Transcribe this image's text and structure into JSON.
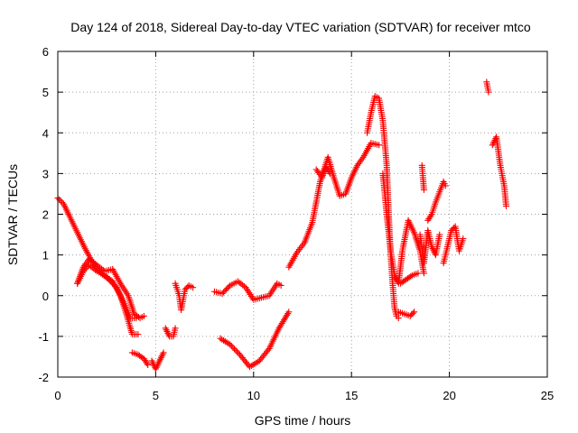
{
  "chart_data": {
    "type": "scatter",
    "title": "Day 124 of 2018, Sidereal Day-to-day VTEC variation (SDTVAR) for receiver mtco",
    "xlabel": "GPS time / hours",
    "ylabel": "SDTVAR / TECUs",
    "xlim": [
      0,
      25
    ],
    "ylim": [
      -2,
      6
    ],
    "xticks": [
      "0",
      "5",
      "10",
      "15",
      "20",
      "25"
    ],
    "yticks": [
      "-2",
      "-1",
      "0",
      "1",
      "2",
      "3",
      "4",
      "5",
      "6"
    ],
    "grid": true,
    "marker": "+",
    "color": "#ff0000",
    "series": [
      {
        "x": [
          0,
          0.3,
          0.6,
          1.0,
          1.4,
          1.8,
          2.2,
          2.6,
          3.0,
          3.4,
          3.7,
          4.0
        ],
        "y": [
          2.4,
          2.25,
          1.95,
          1.55,
          1.15,
          0.8,
          0.55,
          0.4,
          0.2,
          -0.2,
          -0.55,
          -0.55
        ]
      },
      {
        "x": [
          1.0,
          1.3,
          1.6,
          2.0,
          2.4,
          2.8,
          3.2,
          3.5,
          3.8,
          4.1
        ],
        "y": [
          0.3,
          0.6,
          0.75,
          0.6,
          0.5,
          0.35,
          0.0,
          -0.45,
          -0.95,
          -0.95
        ]
      },
      {
        "x": [
          1.0,
          1.3,
          1.6,
          2.0,
          2.4,
          2.8,
          3.2,
          3.6,
          3.9,
          4.2,
          4.4
        ],
        "y": [
          0.3,
          0.7,
          0.9,
          0.75,
          0.6,
          0.65,
          0.3,
          0.0,
          -0.45,
          -0.55,
          -0.5
        ]
      },
      {
        "x": [
          3.8,
          4.1,
          4.4,
          4.6
        ],
        "y": [
          -1.4,
          -1.45,
          -1.55,
          -1.7
        ]
      },
      {
        "x": [
          4.8,
          5.0,
          5.2,
          5.4
        ],
        "y": [
          -1.6,
          -1.8,
          -1.6,
          -1.4
        ]
      },
      {
        "x": [
          5.5,
          5.7,
          5.9,
          6.0
        ],
        "y": [
          -0.8,
          -1.0,
          -1.0,
          -0.8
        ]
      },
      {
        "x": [
          6.0,
          6.2,
          6.3,
          6.5,
          6.7,
          6.9
        ],
        "y": [
          0.3,
          0.0,
          -0.35,
          0.15,
          0.25,
          0.2
        ]
      },
      {
        "x": [
          8.0,
          8.4,
          8.8,
          9.2,
          9.6,
          10.0,
          10.4,
          10.8,
          11.2,
          11.4
        ],
        "y": [
          0.1,
          0.05,
          0.25,
          0.35,
          0.2,
          -0.1,
          -0.05,
          0.0,
          0.3,
          0.25
        ]
      },
      {
        "x": [
          8.3,
          8.8,
          9.3,
          9.8,
          10.3,
          10.8,
          11.3,
          11.8
        ],
        "y": [
          -1.05,
          -1.2,
          -1.45,
          -1.75,
          -1.6,
          -1.3,
          -0.8,
          -0.4
        ]
      },
      {
        "x": [
          11.8,
          12.2,
          12.6,
          13.0,
          13.4,
          13.8,
          14.1,
          14.4,
          14.7,
          15.0,
          15.3,
          15.6,
          16.0,
          16.4
        ],
        "y": [
          0.7,
          1.05,
          1.3,
          1.8,
          2.8,
          3.4,
          2.9,
          2.45,
          2.5,
          2.9,
          3.2,
          3.4,
          3.75,
          3.7
        ]
      },
      {
        "x": [
          13.2,
          13.5,
          13.7,
          13.9
        ],
        "y": [
          3.1,
          2.9,
          3.15,
          3.0
        ]
      },
      {
        "x": [
          15.8,
          16.0,
          16.2,
          16.4,
          16.6,
          16.8,
          16.9,
          17.0,
          17.1,
          17.2,
          17.3,
          17.4
        ],
        "y": [
          4.0,
          4.5,
          4.9,
          4.85,
          4.3,
          3.2,
          2.0,
          1.0,
          0.3,
          -0.3,
          -0.5,
          -0.55
        ]
      },
      {
        "x": [
          16.6,
          16.8,
          17.0,
          17.2,
          17.4,
          17.6,
          17.9,
          18.2,
          18.5,
          18.7
        ],
        "y": [
          3.0,
          2.0,
          1.1,
          0.5,
          0.3,
          1.1,
          1.85,
          1.55,
          1.1,
          0.55
        ]
      },
      {
        "x": [
          17.4,
          17.7,
          18.0,
          18.2
        ],
        "y": [
          -0.4,
          -0.45,
          -0.5,
          -0.4
        ]
      },
      {
        "x": [
          17.5,
          17.8,
          18.1,
          18.4
        ],
        "y": [
          0.3,
          0.4,
          0.5,
          0.55
        ]
      },
      {
        "x": [
          18.5,
          18.7,
          18.9,
          19.1,
          19.3,
          19.5
        ],
        "y": [
          1.5,
          0.8,
          1.6,
          1.2,
          1.0,
          1.5
        ]
      },
      {
        "x": [
          18.9,
          19.1,
          19.3,
          19.5,
          19.7,
          19.8
        ],
        "y": [
          1.85,
          2.0,
          2.3,
          2.55,
          2.8,
          2.7
        ]
      },
      {
        "x": [
          18.6,
          18.7
        ],
        "y": [
          3.2,
          2.6
        ]
      },
      {
        "x": [
          19.7,
          19.9,
          20.1,
          20.3,
          20.5,
          20.7
        ],
        "y": [
          0.8,
          1.2,
          1.6,
          1.7,
          1.1,
          1.4
        ]
      },
      {
        "x": [
          21.9,
          22.0
        ],
        "y": [
          5.25,
          5.0
        ]
      },
      {
        "x": [
          22.2,
          22.4,
          22.6,
          22.8,
          22.9
        ],
        "y": [
          3.7,
          3.9,
          3.2,
          2.7,
          2.2
        ]
      }
    ]
  }
}
